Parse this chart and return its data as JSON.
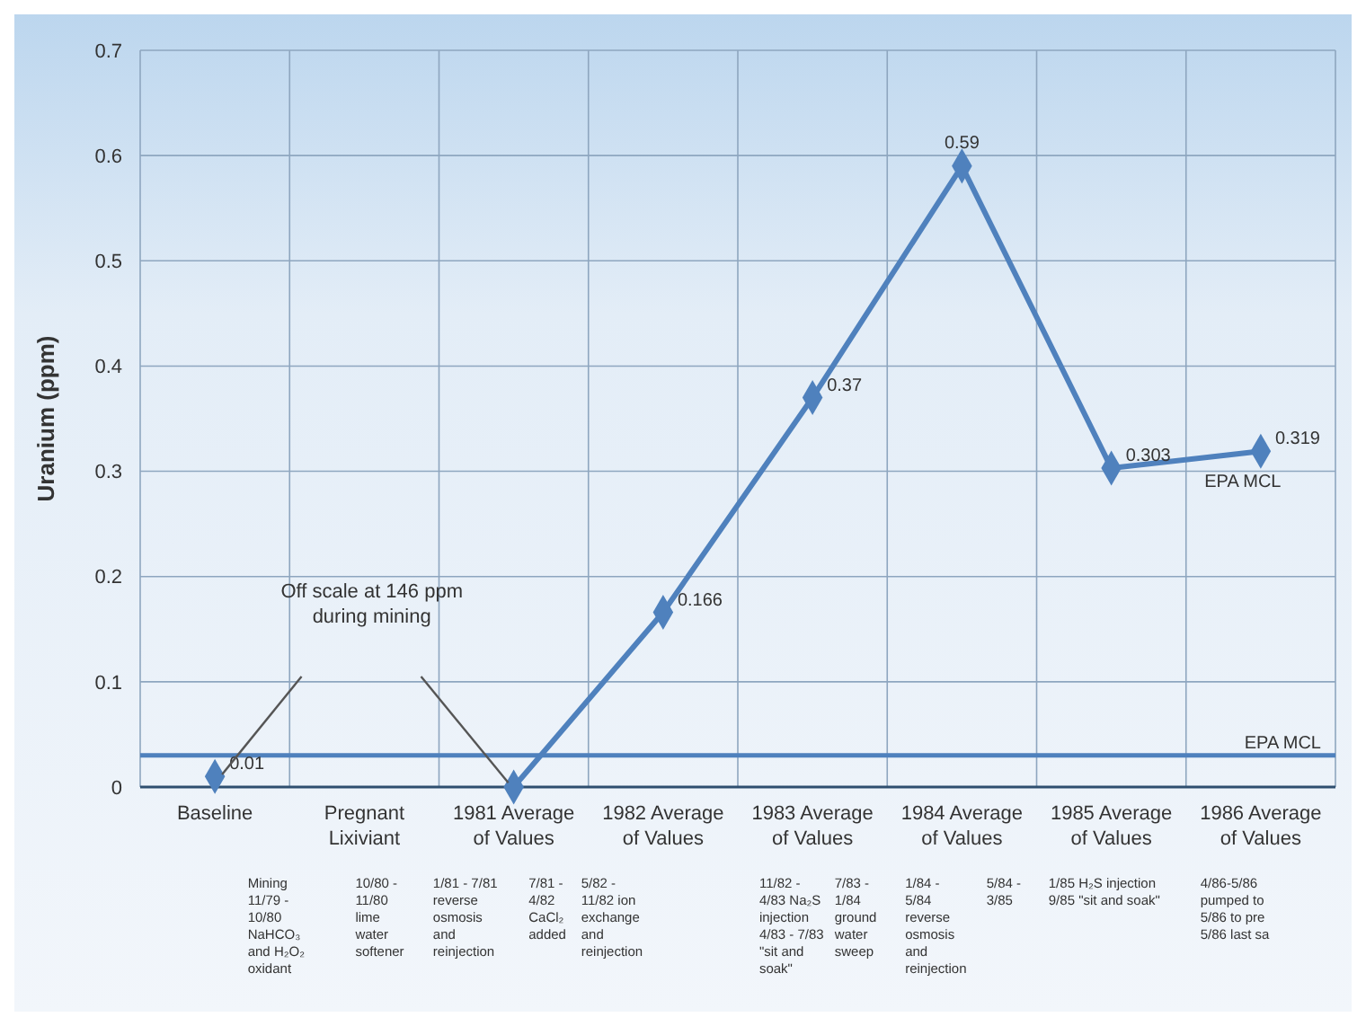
{
  "chart_data": {
    "type": "line",
    "ylabel": "Uranium (ppm)",
    "categories": [
      "Baseline",
      "Pregnant Lixiviant",
      "1981 Average of Values",
      "1982 Average of Values",
      "1983 Average of Values",
      "1984 Average of Values",
      "1985 Average of Values",
      "1986 Average of Values"
    ],
    "series": [
      {
        "color": "#4f81bd",
        "values": [
          0.01,
          null,
          0,
          0.166,
          0.37,
          0.59,
          0.303,
          0.319
        ],
        "value_labels": [
          "0.01",
          null,
          null,
          "0.166",
          "0.37",
          "0.59",
          "0.303",
          "0.319"
        ]
      }
    ],
    "ylim": [
      0,
      0.7
    ],
    "yticks": [
      0,
      0.1,
      0.2,
      0.3,
      0.4,
      0.5,
      0.6,
      0.7
    ],
    "grid": true,
    "marker": "diamond",
    "line_style": "solid",
    "ref_lines": [
      {
        "axis": "y",
        "value": 0.03,
        "label": "EPA MCL",
        "color": "#4f81bd"
      }
    ],
    "annotations": [
      "Off scale at 146 ppm\nduring mining",
      "EPA MCL",
      "Mining\n11/79 -\n10/80\nNaHCO₃\nand H₂O₂\noxidant",
      "10/80 -\n11/80\nlime\nwater\nsoftener",
      "1/81 - 7/81\nreverse\nosmosis\nand\nreinjection",
      "7/81 -\n4/82\nCaCl₂\nadded",
      "5/82 -\n11/82 ion\nexchange\nand\nreinjection",
      "11/82 -\n4/83 Na₂S\ninjection\n4/83 - 7/83\n\"sit and\nsoak\"",
      "7/83 -\n1/84\nground\nwater\nsweep",
      "1/84 -\n5/84\nreverse\nosmosis\nand\nreinjection",
      "5/84 -\n3/85",
      "1/85 H₂S injection\n9/85 \"sit and soak\"",
      "4/86-5/86\npumped to\n5/86 to pre\n5/86 last sa"
    ]
  }
}
